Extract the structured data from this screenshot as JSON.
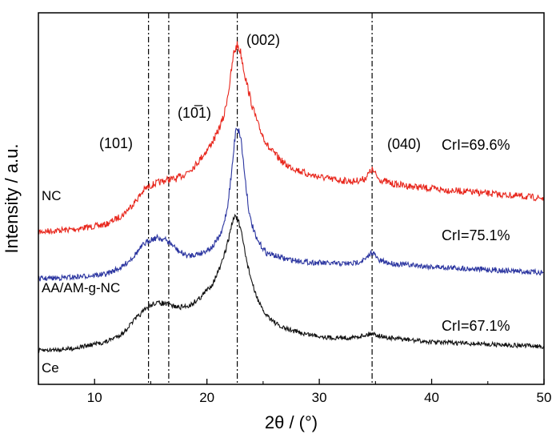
{
  "chart_data": {
    "type": "line",
    "xlabel": "2θ / (°)",
    "ylabel": "Intensity / a.u.",
    "xlim": [
      5,
      50
    ],
    "xticks": [
      10,
      20,
      30,
      40,
      50
    ],
    "xtick_labels": [
      "10",
      "20",
      "30",
      "40",
      "50"
    ],
    "y_ticks_shown": false,
    "grid": false,
    "reference_lines_x": [
      14.8,
      16.6,
      22.7,
      34.7
    ],
    "peak_labels": [
      {
        "text": "(101)",
        "x": 14.8
      },
      {
        "text": "(10̅1)",
        "x": 16.6
      },
      {
        "text": "(002)",
        "x": 22.7
      },
      {
        "text": "(040)",
        "x": 34.7
      }
    ],
    "series": [
      {
        "name": "NC",
        "crystallinity": "CrI=69.6%",
        "color": "#e8261c",
        "x": [
          5,
          8,
          11,
          12.5,
          13.5,
          14.5,
          15.3,
          16,
          16.6,
          17.2,
          18,
          19,
          20,
          20.8,
          21.5,
          22,
          22.4,
          22.7,
          23,
          23.4,
          24,
          24.6,
          25.5,
          27,
          29,
          31,
          33,
          34,
          34.7,
          35.3,
          36.5,
          40,
          45,
          50
        ],
        "y": [
          0.49,
          0.5,
          0.52,
          0.56,
          0.61,
          0.67,
          0.69,
          0.7,
          0.71,
          0.71,
          0.73,
          0.77,
          0.83,
          0.89,
          0.97,
          1.1,
          1.24,
          1.27,
          1.24,
          1.14,
          1.02,
          0.93,
          0.84,
          0.77,
          0.73,
          0.71,
          0.7,
          0.71,
          0.75,
          0.71,
          0.69,
          0.67,
          0.65,
          0.63
        ]
      },
      {
        "name": "AA/AM-g-NC",
        "crystallinity": "CrI=75.1%",
        "color": "#2b35a0",
        "x": [
          5,
          8,
          11,
          12.5,
          13.5,
          14.3,
          15,
          15.6,
          16.2,
          16.8,
          17.5,
          18.3,
          19.5,
          20.5,
          21.3,
          21.8,
          22.2,
          22.6,
          23,
          23.4,
          23.8,
          24.4,
          25.3,
          27,
          29,
          31,
          33,
          34.2,
          34.7,
          35.3,
          36.5,
          40,
          45,
          50
        ],
        "y": [
          0.22,
          0.23,
          0.25,
          0.3,
          0.37,
          0.44,
          0.48,
          0.49,
          0.48,
          0.45,
          0.4,
          0.37,
          0.39,
          0.43,
          0.52,
          0.68,
          0.92,
          1.23,
          1.16,
          0.88,
          0.63,
          0.48,
          0.39,
          0.35,
          0.33,
          0.32,
          0.32,
          0.35,
          0.4,
          0.34,
          0.32,
          0.3,
          0.28,
          0.26
        ]
      },
      {
        "name": "Ce",
        "crystallinity": "CrI=67.1%",
        "color": "#111111",
        "x": [
          5,
          8,
          11,
          12.5,
          13.5,
          14.5,
          15.3,
          16,
          16.8,
          17.5,
          18.5,
          19.5,
          20.5,
          21.3,
          21.8,
          22.2,
          22.5,
          22.8,
          23.2,
          23.6,
          24.2,
          25,
          26.5,
          28.5,
          31,
          33,
          34.7,
          36,
          40,
          45,
          50
        ],
        "y": [
          0.0,
          0.01,
          0.04,
          0.08,
          0.14,
          0.19,
          0.22,
          0.22,
          0.21,
          0.2,
          0.21,
          0.25,
          0.31,
          0.4,
          0.49,
          0.58,
          0.63,
          0.6,
          0.51,
          0.4,
          0.28,
          0.18,
          0.11,
          0.08,
          0.06,
          0.06,
          0.08,
          0.06,
          0.04,
          0.03,
          0.02
        ]
      }
    ]
  }
}
